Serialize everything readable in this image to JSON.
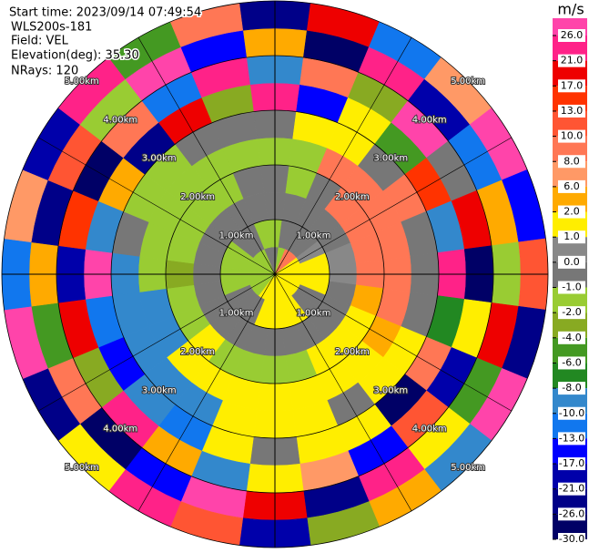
{
  "header": {
    "start_time": "Start time: 2023/09/14 07:49:54",
    "site": "WLS200s-181",
    "field": "Field: VEL",
    "elevation": "Elevation(deg): 35.30",
    "nrays": "NRays: 120"
  },
  "chart_data": {
    "type": "ppi",
    "azimuths": [
      0,
      15,
      30,
      45,
      60,
      75,
      90,
      105,
      120,
      135,
      150,
      165,
      180,
      195,
      210,
      225,
      240,
      255,
      270,
      285,
      300,
      315,
      330,
      345
    ],
    "ranges": [
      0.25,
      0.75,
      1.25,
      1.75,
      2.25,
      2.75,
      3.25,
      3.75,
      4.25,
      4.75
    ],
    "values": [
      [
        -0.5,
        -1.5,
        -0.5,
        -0.5,
        -1.5,
        -0.5,
        23,
        -9,
        4,
        -23
      ],
      [
        -1.5,
        -0.5,
        -0.5,
        -1.5,
        -1.5,
        1.5,
        -15,
        9,
        -28,
        19
      ],
      [
        9,
        -0.5,
        -0.5,
        -0.5,
        9,
        1.5,
        1.5,
        -3,
        23,
        -11
      ],
      [
        9,
        -0.5,
        -0.5,
        9,
        9,
        -0.5,
        -5,
        28,
        -19,
        7
      ],
      [
        1.5,
        0.5,
        -0.5,
        9,
        9,
        9,
        15,
        -0.5,
        -11,
        28
      ],
      [
        1.5,
        1.5,
        0.5,
        9,
        9,
        -0.5,
        -9,
        19,
        4,
        -15
      ],
      [
        1.5,
        1.5,
        0.5,
        9,
        9,
        -0.5,
        23,
        -28,
        -1.5,
        11
      ],
      [
        1.5,
        1.5,
        -0.5,
        4,
        9,
        -0.5,
        -7,
        1.5,
        19,
        -23
      ],
      [
        1.5,
        -0.5,
        -0.5,
        1.5,
        4,
        1.5,
        9,
        -19,
        -5,
        28
      ],
      [
        1.5,
        -0.5,
        -0.5,
        1.5,
        1.5,
        1.5,
        -28,
        11,
        1.5,
        -9
      ],
      [
        1.5,
        1.5,
        -0.5,
        1.5,
        1.5,
        -0.5,
        1.5,
        -15,
        23,
        4
      ],
      [
        1.5,
        1.5,
        -0.5,
        -1.5,
        1.5,
        1.5,
        1.5,
        7,
        -23,
        -3
      ],
      [
        1.5,
        1.5,
        -0.5,
        -1.5,
        1.5,
        1.5,
        -0.5,
        1.5,
        19,
        -19
      ],
      [
        1.5,
        1.5,
        -0.5,
        -1.5,
        1.5,
        1.5,
        1.5,
        -9,
        28,
        11
      ],
      [
        1.5,
        -0.5,
        -0.5,
        -1.5,
        1.5,
        -9,
        -11,
        4,
        -15,
        23
      ],
      [
        -1.5,
        -0.5,
        -0.5,
        1.5,
        1.5,
        -9,
        -9,
        23,
        -28,
        1.5
      ],
      [
        -1.5,
        -0.5,
        -0.5,
        -1.5,
        -9,
        -9,
        -15,
        -3,
        9,
        -23
      ],
      [
        -1.5,
        -1.5,
        -0.5,
        -1.5,
        -9,
        -9,
        -11,
        19,
        -5,
        28
      ],
      [
        -1.5,
        -1.5,
        -0.5,
        -3,
        -1.5,
        -9,
        28,
        -19,
        4,
        -11
      ],
      [
        -1.5,
        -1.5,
        -0.5,
        -1.5,
        -1.5,
        -0.5,
        -9,
        15,
        -23,
        7
      ],
      [
        -1.5,
        -1.5,
        -0.5,
        -1.5,
        -1.5,
        -1.5,
        4,
        -28,
        11,
        -19
      ],
      [
        -1.5,
        -0.5,
        -0.5,
        -1.5,
        -1.5,
        -1.5,
        -23,
        9,
        -1.5,
        23
      ],
      [
        -1.5,
        -0.5,
        -0.5,
        -1.5,
        -1.5,
        -0.5,
        19,
        -11,
        28,
        -5
      ],
      [
        -0.5,
        -1.5,
        -0.5,
        -0.5,
        -1.5,
        -0.5,
        -3,
        23,
        -15,
        9
      ]
    ],
    "range_rings": [
      {
        "value": 1,
        "label": "1.00km"
      },
      {
        "value": 2,
        "label": "2.00km"
      },
      {
        "value": 3,
        "label": "3.00km"
      },
      {
        "value": 4,
        "label": "4.00km"
      },
      {
        "value": 5,
        "label": "5.00km"
      }
    ],
    "colorbar": {
      "title": "m/s",
      "ticks": [
        {
          "value": 26,
          "label": "26.0"
        },
        {
          "value": 21,
          "label": "21.0"
        },
        {
          "value": 17,
          "label": "17.0"
        },
        {
          "value": 13,
          "label": "13.0"
        },
        {
          "value": 10,
          "label": "10.0"
        },
        {
          "value": 8,
          "label": "8.0"
        },
        {
          "value": 6,
          "label": "6.0"
        },
        {
          "value": 2,
          "label": "2.0"
        },
        {
          "value": 1,
          "label": "1.0"
        },
        {
          "value": 0,
          "label": "0.0"
        },
        {
          "value": -1,
          "label": "-1.0"
        },
        {
          "value": -2,
          "label": "-2.0"
        },
        {
          "value": -4,
          "label": "-4.0"
        },
        {
          "value": -6,
          "label": "-6.0"
        },
        {
          "value": -8,
          "label": "-8.0"
        },
        {
          "value": -10,
          "label": "-10.0"
        },
        {
          "value": -13,
          "label": "-13.0"
        },
        {
          "value": -17,
          "label": "-17.0"
        },
        {
          "value": -21,
          "label": "-21.0"
        },
        {
          "value": -26,
          "label": "-26.0"
        },
        {
          "value": -30,
          "label": "-30.0"
        }
      ],
      "colors": [
        "#ff44aa",
        "#ff2288",
        "#ee0000",
        "#ff3300",
        "#ff5533",
        "#ff7755",
        "#ff9966",
        "#ffaa00",
        "#ffee00",
        "#888888",
        "#777777",
        "#99cc33",
        "#88aa22",
        "#449922",
        "#228822",
        "#3388cc",
        "#1177ee",
        "#0000ff",
        "#0000aa",
        "#000088",
        "#000066"
      ]
    }
  }
}
